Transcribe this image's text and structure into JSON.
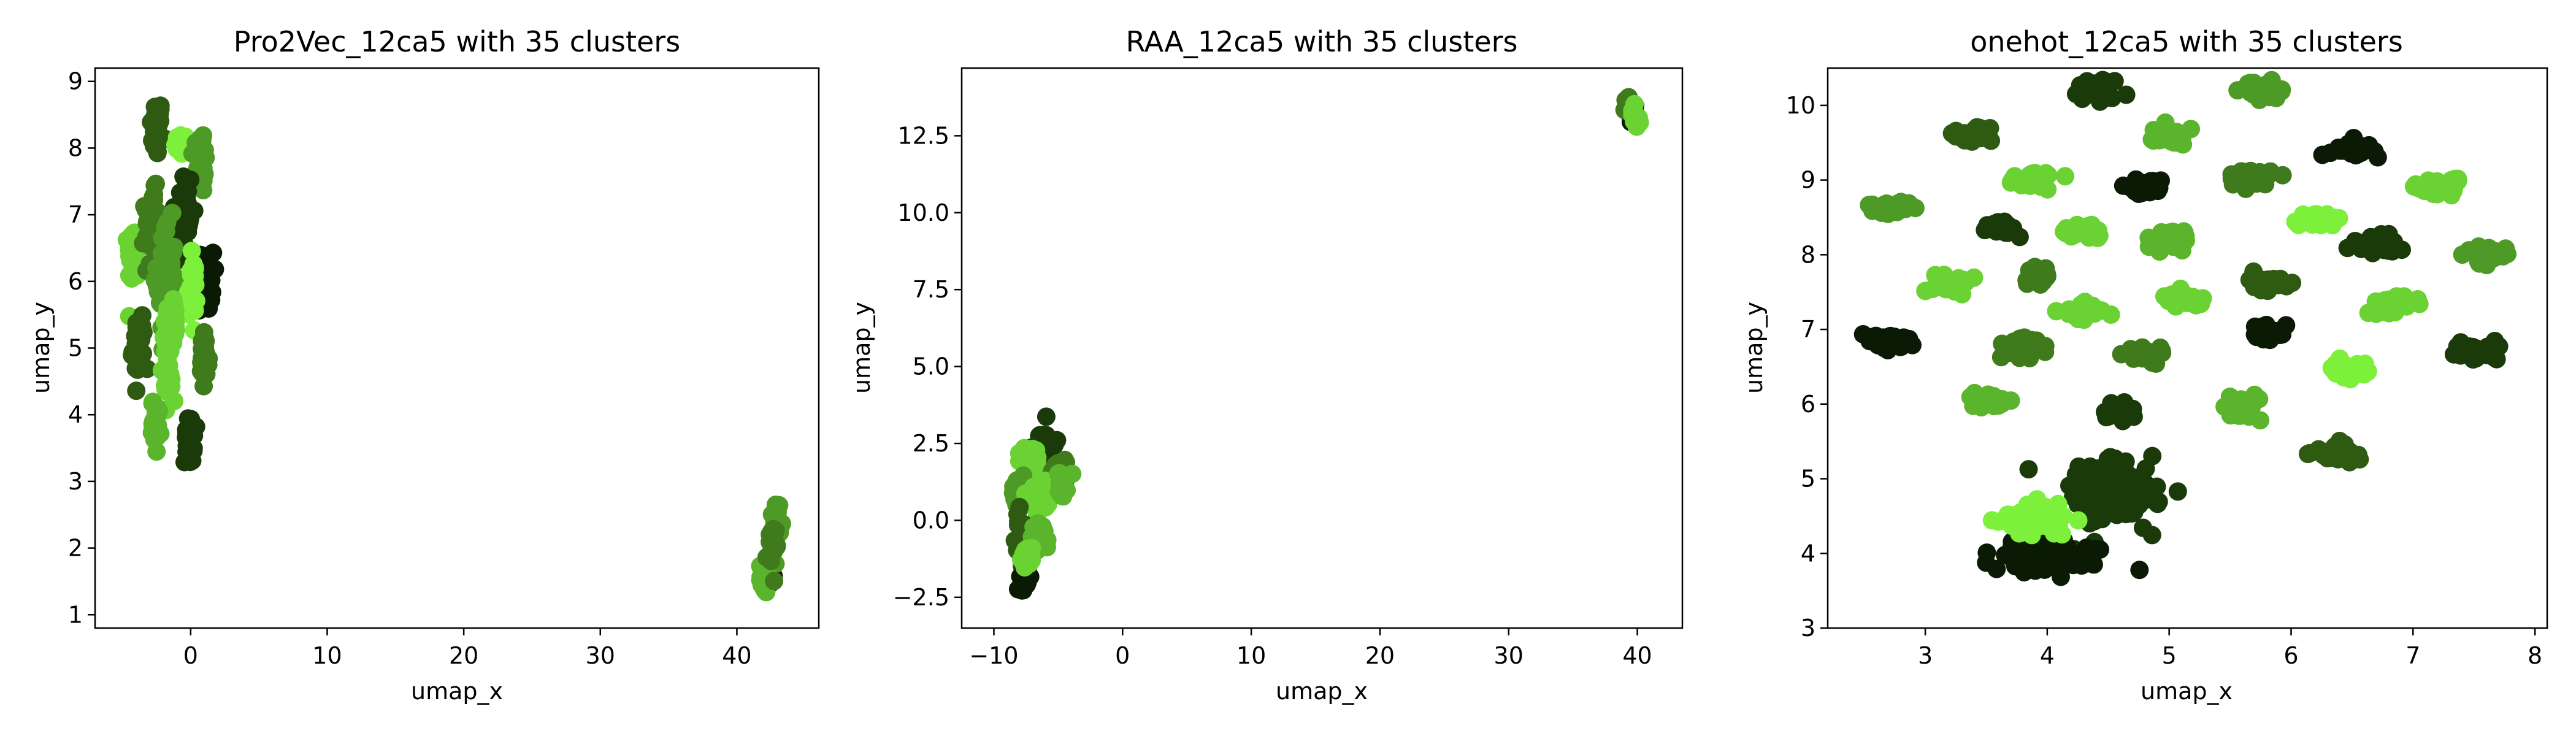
{
  "chart_data": [
    {
      "type": "scatter",
      "title": "Pro2Vec_12ca5 with 35 clusters",
      "xlabel": "umap_x",
      "ylabel": "umap_y",
      "xlim": [
        -7,
        46
      ],
      "ylim": [
        0.8,
        9.2
      ],
      "xticks": [
        0,
        10,
        20,
        30,
        40
      ],
      "yticks": [
        1,
        2,
        3,
        4,
        5,
        6,
        7,
        8,
        9
      ],
      "grid": false,
      "legend": "none",
      "clusters": [
        {
          "color": "#2e5a12",
          "x": -2.5,
          "y": 8.3,
          "sx": 0.4,
          "sy": 0.4,
          "n": 40
        },
        {
          "color": "#7cf03a",
          "x": -0.7,
          "y": 8.05,
          "sx": 0.4,
          "sy": 0.15,
          "n": 20
        },
        {
          "color": "#4e9a26",
          "x": 0.8,
          "y": 7.8,
          "sx": 0.3,
          "sy": 0.45,
          "n": 40
        },
        {
          "color": "#1a3a0a",
          "x": -0.5,
          "y": 7.0,
          "sx": 0.6,
          "sy": 0.7,
          "n": 60
        },
        {
          "color": "#6ad232",
          "x": -4.2,
          "y": 6.4,
          "sx": 0.35,
          "sy": 0.4,
          "n": 40
        },
        {
          "color": "#3f7a1c",
          "x": -2.8,
          "y": 6.8,
          "sx": 0.5,
          "sy": 0.5,
          "n": 50
        },
        {
          "color": "#4e9a26",
          "x": -1.8,
          "y": 6.0,
          "sx": 0.6,
          "sy": 0.8,
          "n": 70
        },
        {
          "color": "#0a1a04",
          "x": 1.0,
          "y": 6.0,
          "sx": 0.6,
          "sy": 0.4,
          "n": 40
        },
        {
          "color": "#7cf03a",
          "x": 0.1,
          "y": 5.9,
          "sx": 0.3,
          "sy": 0.4,
          "n": 30
        },
        {
          "color": "#2e5a12",
          "x": -3.8,
          "y": 5.0,
          "sx": 0.4,
          "sy": 0.5,
          "n": 40
        },
        {
          "color": "#6ad232",
          "x": -1.6,
          "y": 4.9,
          "sx": 0.4,
          "sy": 0.6,
          "n": 50
        },
        {
          "color": "#3f7a1c",
          "x": 1.0,
          "y": 4.8,
          "sx": 0.3,
          "sy": 0.4,
          "n": 30
        },
        {
          "color": "#5bb52c",
          "x": -2.5,
          "y": 3.9,
          "sx": 0.3,
          "sy": 0.3,
          "n": 30
        },
        {
          "color": "#1a3a0a",
          "x": -0.1,
          "y": 3.6,
          "sx": 0.3,
          "sy": 0.3,
          "n": 30
        },
        {
          "color": "#6ad232",
          "x": -1.3,
          "y": 5.4,
          "sx": 0.25,
          "sy": 0.3,
          "n": 25
        },
        {
          "color": "#0a1a04",
          "x": 42.2,
          "y": 1.6,
          "sx": 0.3,
          "sy": 0.25,
          "n": 25
        },
        {
          "color": "#4e9a26",
          "x": 42.9,
          "y": 2.4,
          "sx": 0.25,
          "sy": 0.3,
          "n": 25
        },
        {
          "color": "#5bb52c",
          "x": 42.0,
          "y": 1.55,
          "sx": 0.25,
          "sy": 0.2,
          "n": 20
        },
        {
          "color": "#3f7a1c",
          "x": 42.5,
          "y": 2.0,
          "sx": 0.3,
          "sy": 0.3,
          "n": 25
        }
      ]
    },
    {
      "type": "scatter",
      "title": "RAA_12ca5 with 35 clusters",
      "xlabel": "umap_x",
      "ylabel": "umap_y",
      "xlim": [
        -12.5,
        43.5
      ],
      "ylim": [
        -3.5,
        14.7
      ],
      "xticks": [
        -10,
        0,
        10,
        20,
        30,
        40
      ],
      "yticks": [
        -2.5,
        0.0,
        2.5,
        5.0,
        7.5,
        10.0,
        12.5
      ],
      "grid": false,
      "legend": "none",
      "clusters": [
        {
          "color": "#1a3a0a",
          "x": -6.0,
          "y": 2.4,
          "sx": 0.8,
          "sy": 0.5,
          "n": 40
        },
        {
          "color": "#6ad232",
          "x": -7.2,
          "y": 2.0,
          "sx": 0.6,
          "sy": 0.4,
          "n": 30
        },
        {
          "color": "#3f7a1c",
          "x": -5.0,
          "y": 1.5,
          "sx": 0.6,
          "sy": 0.5,
          "n": 30
        },
        {
          "color": "#4e9a26",
          "x": -8.0,
          "y": 0.8,
          "sx": 0.5,
          "sy": 0.6,
          "n": 30
        },
        {
          "color": "#6ad232",
          "x": -6.5,
          "y": 0.7,
          "sx": 0.6,
          "sy": 0.5,
          "n": 30
        },
        {
          "color": "#5bb52c",
          "x": -4.8,
          "y": 1.2,
          "sx": 0.4,
          "sy": 0.4,
          "n": 25
        },
        {
          "color": "#2e5a12",
          "x": -7.8,
          "y": -0.6,
          "sx": 0.5,
          "sy": 0.6,
          "n": 30
        },
        {
          "color": "#5bb52c",
          "x": -6.5,
          "y": -0.5,
          "sx": 0.5,
          "sy": 0.5,
          "n": 30
        },
        {
          "color": "#0a1a04",
          "x": -7.5,
          "y": -1.9,
          "sx": 0.5,
          "sy": 0.4,
          "n": 25
        },
        {
          "color": "#6ad232",
          "x": -7.5,
          "y": -1.3,
          "sx": 0.4,
          "sy": 0.4,
          "n": 20
        },
        {
          "color": "#0a1a04",
          "x": 39.6,
          "y": 13.2,
          "sx": 0.3,
          "sy": 0.3,
          "n": 20
        },
        {
          "color": "#3f7a1c",
          "x": 39.2,
          "y": 13.5,
          "sx": 0.3,
          "sy": 0.2,
          "n": 20
        },
        {
          "color": "#6ad232",
          "x": 39.8,
          "y": 13.1,
          "sx": 0.25,
          "sy": 0.25,
          "n": 20
        }
      ]
    },
    {
      "type": "scatter",
      "title": "onehot_12ca5 with 35 clusters",
      "xlabel": "umap_x",
      "ylabel": "umap_y",
      "xlim": [
        2.2,
        8.1
      ],
      "ylim": [
        3.0,
        10.5
      ],
      "xticks": [
        3,
        4,
        5,
        6,
        7,
        8
      ],
      "yticks": [
        3,
        4,
        5,
        6,
        7,
        8,
        9,
        10
      ],
      "grid": false,
      "legend": "none",
      "clusters": [
        {
          "color": "#1a3a0a",
          "x": 4.4,
          "y": 10.2,
          "sx": 0.15,
          "sy": 0.12,
          "n": 40
        },
        {
          "color": "#5bb52c",
          "x": 5.0,
          "y": 9.6,
          "sx": 0.13,
          "sy": 0.12,
          "n": 35
        },
        {
          "color": "#4e9a26",
          "x": 5.8,
          "y": 10.2,
          "sx": 0.15,
          "sy": 0.12,
          "n": 40
        },
        {
          "color": "#2e5a12",
          "x": 3.4,
          "y": 9.6,
          "sx": 0.15,
          "sy": 0.1,
          "n": 40
        },
        {
          "color": "#0a1a04",
          "x": 6.5,
          "y": 9.4,
          "sx": 0.15,
          "sy": 0.1,
          "n": 35
        },
        {
          "color": "#6ad232",
          "x": 3.9,
          "y": 9.0,
          "sx": 0.17,
          "sy": 0.1,
          "n": 40
        },
        {
          "color": "#0a1a04",
          "x": 4.8,
          "y": 8.9,
          "sx": 0.12,
          "sy": 0.1,
          "n": 30
        },
        {
          "color": "#3f7a1c",
          "x": 5.7,
          "y": 9.05,
          "sx": 0.15,
          "sy": 0.1,
          "n": 35
        },
        {
          "color": "#6ad232",
          "x": 7.2,
          "y": 8.9,
          "sx": 0.16,
          "sy": 0.1,
          "n": 40
        },
        {
          "color": "#4e9a26",
          "x": 2.7,
          "y": 8.6,
          "sx": 0.17,
          "sy": 0.1,
          "n": 40
        },
        {
          "color": "#1a3a0a",
          "x": 3.6,
          "y": 8.35,
          "sx": 0.13,
          "sy": 0.1,
          "n": 35
        },
        {
          "color": "#6ad232",
          "x": 4.3,
          "y": 8.3,
          "sx": 0.13,
          "sy": 0.1,
          "n": 35
        },
        {
          "color": "#5bb52c",
          "x": 5.0,
          "y": 8.2,
          "sx": 0.14,
          "sy": 0.11,
          "n": 35
        },
        {
          "color": "#7cf03a",
          "x": 6.2,
          "y": 8.45,
          "sx": 0.17,
          "sy": 0.08,
          "n": 40
        },
        {
          "color": "#1a3a0a",
          "x": 6.7,
          "y": 8.15,
          "sx": 0.15,
          "sy": 0.1,
          "n": 35
        },
        {
          "color": "#4e9a26",
          "x": 7.6,
          "y": 8.0,
          "sx": 0.15,
          "sy": 0.1,
          "n": 40
        },
        {
          "color": "#3f7a1c",
          "x": 3.9,
          "y": 7.7,
          "sx": 0.13,
          "sy": 0.12,
          "n": 35
        },
        {
          "color": "#6ad232",
          "x": 3.2,
          "y": 7.6,
          "sx": 0.15,
          "sy": 0.1,
          "n": 35
        },
        {
          "color": "#6ad232",
          "x": 5.1,
          "y": 7.4,
          "sx": 0.15,
          "sy": 0.1,
          "n": 40
        },
        {
          "color": "#2e5a12",
          "x": 5.8,
          "y": 7.6,
          "sx": 0.15,
          "sy": 0.1,
          "n": 35
        },
        {
          "color": "#6ad232",
          "x": 4.3,
          "y": 7.25,
          "sx": 0.13,
          "sy": 0.1,
          "n": 35
        },
        {
          "color": "#6ad232",
          "x": 6.8,
          "y": 7.35,
          "sx": 0.17,
          "sy": 0.1,
          "n": 40
        },
        {
          "color": "#0a1a04",
          "x": 2.7,
          "y": 6.85,
          "sx": 0.17,
          "sy": 0.1,
          "n": 40
        },
        {
          "color": "#3f7a1c",
          "x": 3.8,
          "y": 6.75,
          "sx": 0.15,
          "sy": 0.12,
          "n": 40
        },
        {
          "color": "#3f7a1c",
          "x": 4.8,
          "y": 6.65,
          "sx": 0.14,
          "sy": 0.1,
          "n": 35
        },
        {
          "color": "#0a1a04",
          "x": 5.8,
          "y": 6.95,
          "sx": 0.13,
          "sy": 0.1,
          "n": 35
        },
        {
          "color": "#1a3a0a",
          "x": 7.5,
          "y": 6.7,
          "sx": 0.17,
          "sy": 0.1,
          "n": 40
        },
        {
          "color": "#7cf03a",
          "x": 6.5,
          "y": 6.45,
          "sx": 0.14,
          "sy": 0.1,
          "n": 40
        },
        {
          "color": "#5bb52c",
          "x": 3.5,
          "y": 6.05,
          "sx": 0.15,
          "sy": 0.1,
          "n": 40
        },
        {
          "color": "#1a3a0a",
          "x": 4.6,
          "y": 5.9,
          "sx": 0.12,
          "sy": 0.12,
          "n": 35
        },
        {
          "color": "#5bb52c",
          "x": 5.6,
          "y": 5.95,
          "sx": 0.12,
          "sy": 0.12,
          "n": 35
        },
        {
          "color": "#2e5a12",
          "x": 6.4,
          "y": 5.35,
          "sx": 0.15,
          "sy": 0.12,
          "n": 40
        },
        {
          "color": "#1a3a0a",
          "x": 4.5,
          "y": 4.8,
          "sx": 0.35,
          "sy": 0.4,
          "n": 130
        },
        {
          "color": "#0a1a04",
          "x": 4.0,
          "y": 3.95,
          "sx": 0.4,
          "sy": 0.18,
          "n": 130
        },
        {
          "color": "#7cf03a",
          "x": 3.9,
          "y": 4.45,
          "sx": 0.25,
          "sy": 0.2,
          "n": 80
        }
      ]
    }
  ]
}
